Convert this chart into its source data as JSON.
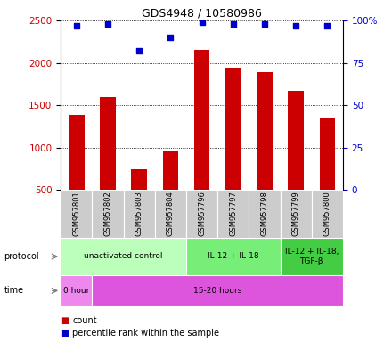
{
  "title": "GDS4948 / 10580986",
  "samples": [
    "GSM957801",
    "GSM957802",
    "GSM957803",
    "GSM957804",
    "GSM957796",
    "GSM957797",
    "GSM957798",
    "GSM957799",
    "GSM957800"
  ],
  "counts": [
    1380,
    1600,
    740,
    960,
    2150,
    1940,
    1890,
    1670,
    1350
  ],
  "percentiles": [
    97,
    98,
    82,
    90,
    99,
    98,
    98,
    97,
    97
  ],
  "ylim_left": [
    500,
    2500
  ],
  "ylim_right": [
    0,
    100
  ],
  "yticks_left": [
    500,
    1000,
    1500,
    2000,
    2500
  ],
  "yticks_right": [
    0,
    25,
    50,
    75,
    100
  ],
  "yticklabels_right": [
    "0",
    "25",
    "50",
    "75",
    "100%"
  ],
  "bar_color": "#cc0000",
  "dot_color": "#0000cc",
  "protocol_groups": [
    {
      "label": "unactivated control",
      "start": 0,
      "end": 4,
      "color": "#bbffbb"
    },
    {
      "label": "IL-12 + IL-18",
      "start": 4,
      "end": 7,
      "color": "#77ee77"
    },
    {
      "label": "IL-12 + IL-18,\nTGF-β",
      "start": 7,
      "end": 9,
      "color": "#44cc44"
    }
  ],
  "time_groups": [
    {
      "label": "0 hour",
      "start": 0,
      "end": 1,
      "color": "#ee88ee"
    },
    {
      "label": "15-20 hours",
      "start": 1,
      "end": 9,
      "color": "#dd55dd"
    }
  ],
  "legend_count_color": "#cc0000",
  "legend_pct_color": "#0000cc",
  "bar_color_left_axis": "#cc0000",
  "right_axis_color": "#0000cc",
  "sample_box_color": "#cccccc"
}
